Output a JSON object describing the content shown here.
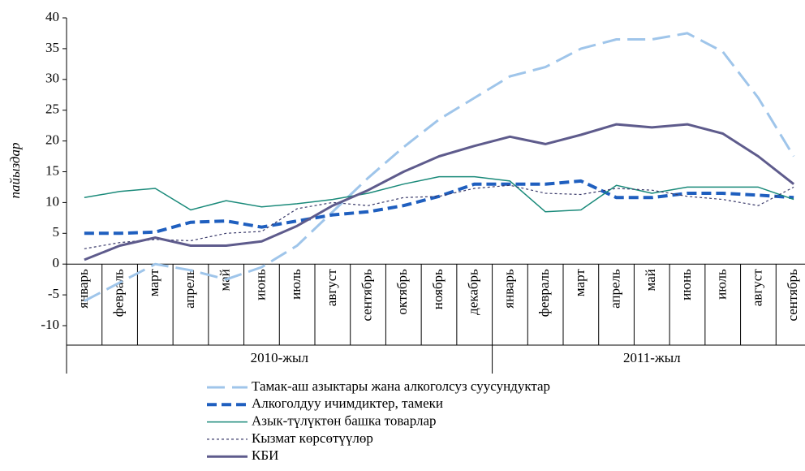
{
  "chart_data": {
    "type": "line",
    "y_label": "пайыздар",
    "category_groups": [
      {
        "name": "2010-жыл",
        "categories": [
          "январь",
          "февраль",
          "март",
          "апрель",
          "май",
          "июнь",
          "июль",
          "август",
          "сентябрь",
          "октябрь",
          "ноябрь",
          "декабрь"
        ]
      },
      {
        "name": "2011-жыл",
        "categories": [
          "январь",
          "февраль",
          "март",
          "апрель",
          "май",
          "июнь",
          "июль",
          "август",
          "сентябрь"
        ]
      }
    ],
    "series": [
      {
        "name": "Тамак-аш азыктары жана алкоголсуз суусундуктар",
        "color": "#9fc5ea",
        "style": "long-dashed",
        "values": [
          -6,
          -3,
          0,
          -1,
          -2.5,
          -0.5,
          3,
          8.5,
          14,
          19,
          23.5,
          27,
          30.5,
          32,
          35,
          36.5,
          36.5,
          37.5,
          34.5,
          27,
          17.5
        ]
      },
      {
        "name": "Алкоголдуу ичимдиктер, тамеки",
        "color": "#1f5fbf",
        "style": "dashed-bold",
        "values": [
          5,
          5,
          5.2,
          6.8,
          7,
          6,
          7,
          8,
          8.5,
          9.5,
          11,
          13,
          13,
          13,
          13.5,
          10.8,
          10.8,
          11.5,
          11.5,
          11.2,
          10.8
        ]
      },
      {
        "name": "Азык-түлүктөн башка товарлар",
        "color": "#1a8a7a",
        "style": "solid",
        "values": [
          10.8,
          11.8,
          12.3,
          8.8,
          10.3,
          9.3,
          9.8,
          10.5,
          11.5,
          13,
          14.2,
          14.2,
          13.5,
          8.5,
          8.8,
          12.8,
          11.5,
          12.5,
          12.5,
          12.5,
          10.5
        ]
      },
      {
        "name": "Кызмат көрсөтүүлөр",
        "color": "#3a3a6a",
        "style": "dotted",
        "values": [
          2.5,
          3.5,
          4,
          3.8,
          5,
          5.3,
          9,
          10,
          9.5,
          10.8,
          11,
          12.3,
          12.8,
          11.5,
          11.3,
          12.3,
          12,
          11,
          10.5,
          9.5,
          12.5
        ]
      },
      {
        "name": "КБИ",
        "color": "#5e5b8c",
        "style": "solid-bold",
        "values": [
          0.7,
          3,
          4.3,
          3,
          3,
          3.7,
          6.2,
          9.5,
          12,
          15,
          17.5,
          19.2,
          20.7,
          19.5,
          21,
          22.7,
          22.2,
          22.7,
          21.2,
          17.5,
          13
        ]
      }
    ],
    "ylim": [
      -10,
      40
    ],
    "yticks": [
      -10,
      -5,
      0,
      5,
      10,
      15,
      20,
      25,
      30,
      35,
      40
    ],
    "grid": false
  }
}
